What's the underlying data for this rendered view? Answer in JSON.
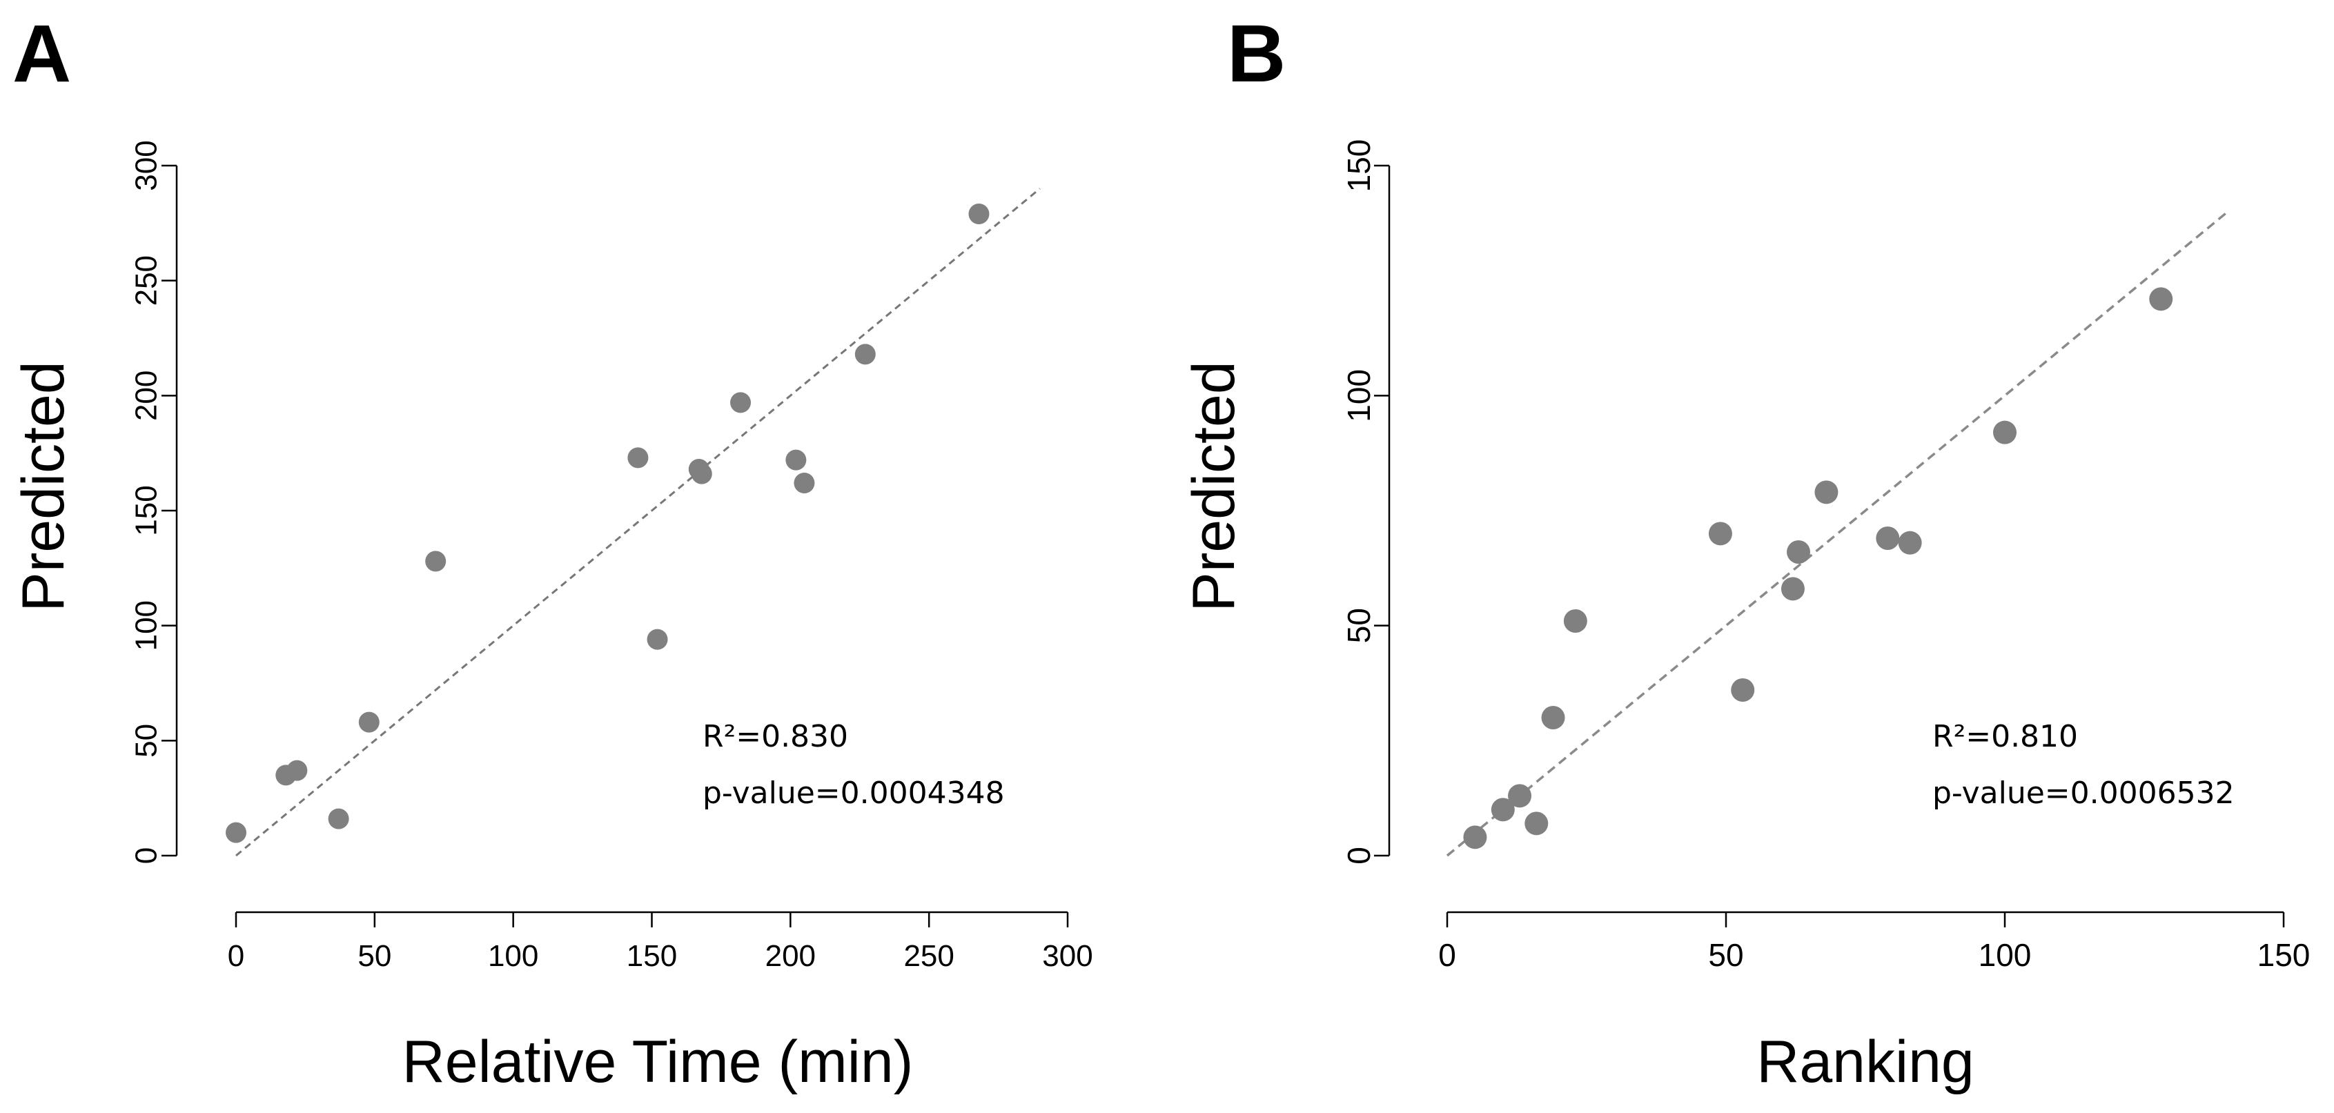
{
  "figure": {
    "background": "#ffffff"
  },
  "chart_data": [
    {
      "panel": "A",
      "type": "scatter",
      "xlabel": "Relative Time (min)",
      "ylabel": "Predicted",
      "xlim": [
        0,
        300
      ],
      "ylim": [
        0,
        300
      ],
      "xticks": [
        0,
        50,
        100,
        150,
        200,
        250,
        300
      ],
      "yticks": [
        0,
        50,
        100,
        150,
        200,
        250,
        300
      ],
      "points": [
        {
          "x": 0,
          "y": 10
        },
        {
          "x": 18,
          "y": 35
        },
        {
          "x": 22,
          "y": 37
        },
        {
          "x": 37,
          "y": 16
        },
        {
          "x": 48,
          "y": 58
        },
        {
          "x": 72,
          "y": 128
        },
        {
          "x": 145,
          "y": 173
        },
        {
          "x": 152,
          "y": 94
        },
        {
          "x": 167,
          "y": 168
        },
        {
          "x": 168,
          "y": 166
        },
        {
          "x": 182,
          "y": 197
        },
        {
          "x": 202,
          "y": 172
        },
        {
          "x": 205,
          "y": 162
        },
        {
          "x": 227,
          "y": 218
        },
        {
          "x": 268,
          "y": 279
        }
      ],
      "fit_line": {
        "x": [
          0,
          290
        ],
        "y": [
          0,
          290
        ],
        "style": "dashed",
        "color": "#777777"
      },
      "point_color": "#808080",
      "annotation": {
        "r2": "R²=0.830",
        "p": "p-value=0.0004348"
      }
    },
    {
      "panel": "B",
      "type": "scatter",
      "xlabel": "Ranking",
      "ylabel": "Predicted",
      "xlim": [
        0,
        150
      ],
      "ylim": [
        0,
        150
      ],
      "xticks": [
        0,
        50,
        100,
        150
      ],
      "yticks": [
        0,
        50,
        100,
        150
      ],
      "points": [
        {
          "x": 5,
          "y": 4
        },
        {
          "x": 10,
          "y": 10
        },
        {
          "x": 13,
          "y": 13
        },
        {
          "x": 16,
          "y": 7
        },
        {
          "x": 19,
          "y": 30
        },
        {
          "x": 23,
          "y": 51
        },
        {
          "x": 49,
          "y": 70
        },
        {
          "x": 53,
          "y": 36
        },
        {
          "x": 62,
          "y": 58
        },
        {
          "x": 63,
          "y": 66
        },
        {
          "x": 68,
          "y": 79
        },
        {
          "x": 79,
          "y": 69
        },
        {
          "x": 83,
          "y": 68
        },
        {
          "x": 100,
          "y": 92
        },
        {
          "x": 128,
          "y": 121
        }
      ],
      "fit_line": {
        "x": [
          0,
          140
        ],
        "y": [
          0,
          140
        ],
        "style": "dashed",
        "color": "#8a8a8a"
      },
      "point_color": "#808080",
      "annotation": {
        "r2": "R²=0.810",
        "p": "p-value=0.0006532"
      }
    }
  ]
}
